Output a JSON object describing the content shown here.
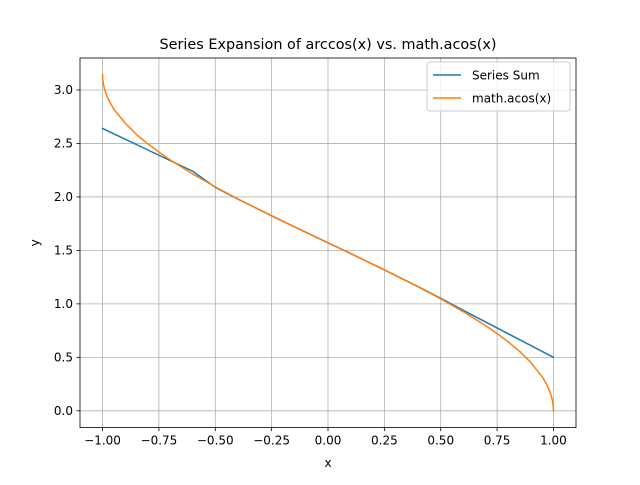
{
  "chart_data": {
    "type": "line",
    "title": "Series Expansion of arccos(x) vs. math.acos(x)",
    "xlabel": "x",
    "ylabel": "y",
    "xlim": [
      -1.1,
      1.1
    ],
    "ylim": [
      -0.157,
      3.299
    ],
    "grid": true,
    "legend_position": "top-right",
    "xticks": [
      -1.0,
      -0.75,
      -0.5,
      -0.25,
      0.0,
      0.25,
      0.5,
      0.75,
      1.0
    ],
    "xtick_labels": [
      "−1.00",
      "−0.75",
      "−0.50",
      "−0.25",
      "0.00",
      "0.25",
      "0.50",
      "0.75",
      "1.00"
    ],
    "yticks": [
      0.0,
      0.5,
      1.0,
      1.5,
      2.0,
      2.5,
      3.0
    ],
    "ytick_labels": [
      "0.0",
      "0.5",
      "1.0",
      "1.5",
      "2.0",
      "2.5",
      "3.0"
    ],
    "series": [
      {
        "name": "Series Sum",
        "color": "#1f77b4",
        "x": [
          -1.0,
          -0.9,
          -0.8,
          -0.7,
          -0.6,
          -0.5,
          -0.4,
          -0.3,
          -0.2,
          -0.1,
          0.0,
          0.1,
          0.2,
          0.3,
          0.4,
          0.5,
          0.6,
          0.7,
          0.8,
          0.9,
          1.0
        ],
        "y": [
          2.64,
          2.54,
          2.44,
          2.34,
          2.24,
          2.09,
          1.98,
          1.876,
          1.772,
          1.671,
          1.571,
          1.471,
          1.369,
          1.266,
          1.161,
          1.052,
          0.94,
          0.83,
          0.72,
          0.61,
          0.5
        ]
      },
      {
        "name": "math.acos(x)",
        "color": "#ff7f0e",
        "x": [
          -1.0,
          -0.999,
          -0.995,
          -0.99,
          -0.98,
          -0.97,
          -0.96,
          -0.95,
          -0.9,
          -0.85,
          -0.8,
          -0.75,
          -0.7,
          -0.6,
          -0.5,
          -0.4,
          -0.3,
          -0.2,
          -0.1,
          0.0,
          0.1,
          0.2,
          0.3,
          0.4,
          0.5,
          0.6,
          0.7,
          0.75,
          0.8,
          0.85,
          0.9,
          0.95,
          0.96,
          0.97,
          0.98,
          0.99,
          0.995,
          0.999,
          1.0
        ],
        "y": [
          3.142,
          3.097,
          3.042,
          3.0,
          2.941,
          2.897,
          2.857,
          2.82,
          2.691,
          2.585,
          2.498,
          2.419,
          2.346,
          2.214,
          2.094,
          1.982,
          1.875,
          1.772,
          1.671,
          1.571,
          1.471,
          1.369,
          1.266,
          1.159,
          1.047,
          0.927,
          0.795,
          0.723,
          0.644,
          0.555,
          0.451,
          0.318,
          0.284,
          0.245,
          0.2,
          0.142,
          0.1,
          0.045,
          0.0
        ]
      }
    ]
  }
}
